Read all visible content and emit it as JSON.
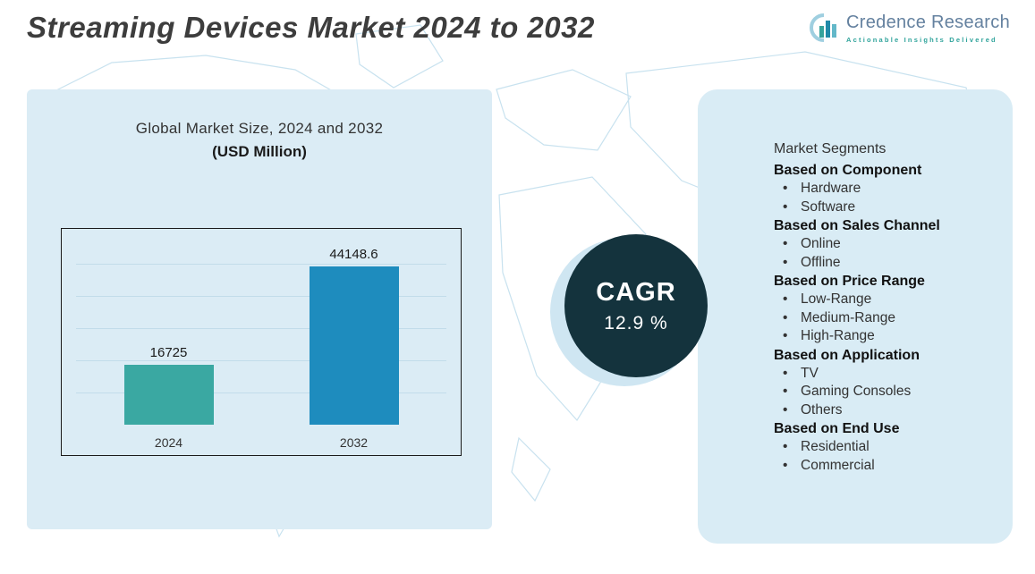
{
  "title": "Streaming Devices Market 2024 to 2032",
  "logo": {
    "name": "Credence Research",
    "tagline": "Actionable Insights Delivered"
  },
  "chart_data": {
    "type": "bar",
    "title": "Global Market Size, 2024 and 2032",
    "subtitle": "(USD Million)",
    "categories": [
      "2024",
      "2032"
    ],
    "values": [
      16725,
      44148.6
    ],
    "value_labels": [
      "16725",
      "44148.6"
    ],
    "colors": [
      "#3aa8a2",
      "#1e8cbe"
    ],
    "ylim": [
      0,
      50000
    ],
    "grid": true,
    "legend": "none"
  },
  "cagr": {
    "label": "CAGR",
    "value": "12.9 %"
  },
  "segments": {
    "title": "Market Segments",
    "groups": [
      {
        "heading": "Based on Component",
        "items": [
          "Hardware",
          "Software"
        ]
      },
      {
        "heading": "Based on Sales Channel",
        "items": [
          "Online",
          "Offline"
        ]
      },
      {
        "heading": "Based on Price Range",
        "items": [
          "Low-Range",
          "Medium-Range",
          "High-Range"
        ]
      },
      {
        "heading": "Based on Application",
        "items": [
          "TV",
          "Gaming Consoles",
          "Others"
        ]
      },
      {
        "heading": "Based on End Use",
        "items": [
          "Residential",
          "Commercial"
        ]
      }
    ]
  },
  "colors": {
    "panel_bg": "#dbecf5",
    "cagr_circle": "#14333d",
    "bar_2024": "#3aa8a2",
    "bar_2032": "#1e8cbe",
    "map_stroke": "#c8e2ef"
  }
}
